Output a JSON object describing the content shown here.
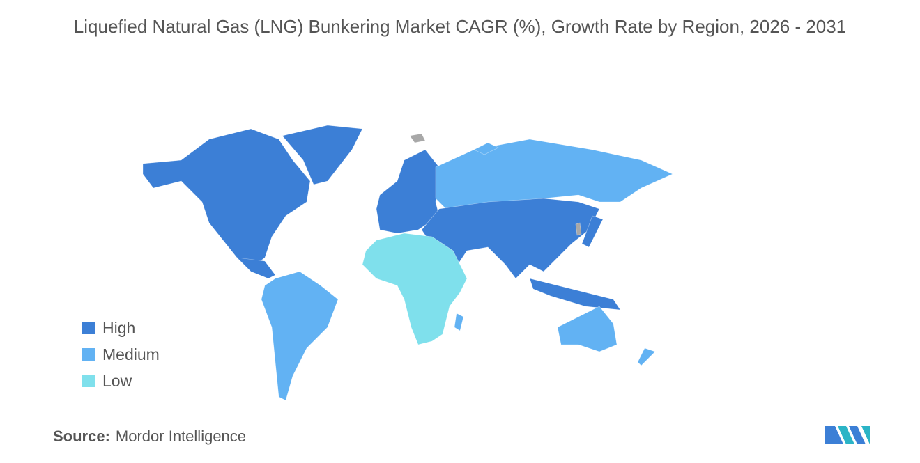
{
  "header": {
    "title": "Liquefied Natural Gas (LNG) Bunkering Market CAGR (%), Growth Rate by Region, 2026 - 2031"
  },
  "legend": {
    "items": [
      {
        "label": "High",
        "color": "#3c7fd6"
      },
      {
        "label": "Medium",
        "color": "#62b2f3"
      },
      {
        "label": "Low",
        "color": "#7fe0ec"
      }
    ]
  },
  "footer": {
    "source_label": "Source:",
    "source": "Mordor Intelligence"
  }
}
